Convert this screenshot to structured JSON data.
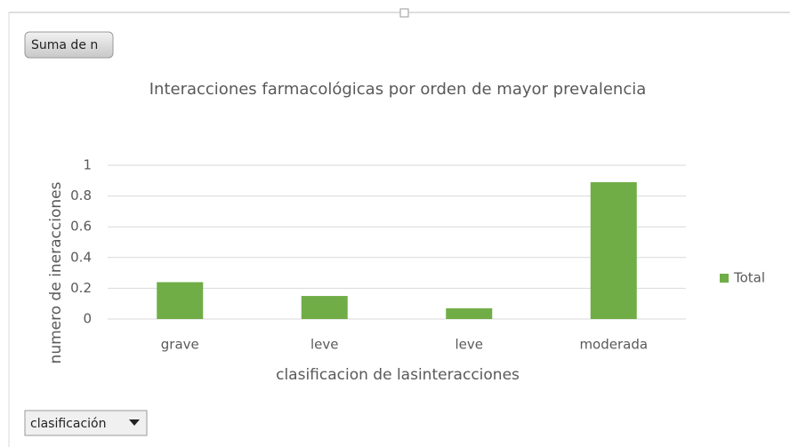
{
  "pivot_buttons": {
    "value_field": "Suma de n",
    "axis_field": "clasificación"
  },
  "chart_data": {
    "type": "bar",
    "title": "Interacciones farmacológicas por orden de mayor prevalencia",
    "x_label": "clasificacion de lasinteracciones",
    "y_label": "numero de ineracciones",
    "categories": [
      "grave",
      "leve",
      "leve",
      "moderada"
    ],
    "series": [
      {
        "name": "Total",
        "color": "#70ad47",
        "values": [
          0.24,
          0.15,
          0.07,
          0.89
        ]
      }
    ],
    "ylim": [
      0,
      1
    ],
    "yticks": [
      0,
      0.2,
      0.4,
      0.6,
      0.8,
      1
    ],
    "grid": true,
    "legend": "right"
  }
}
